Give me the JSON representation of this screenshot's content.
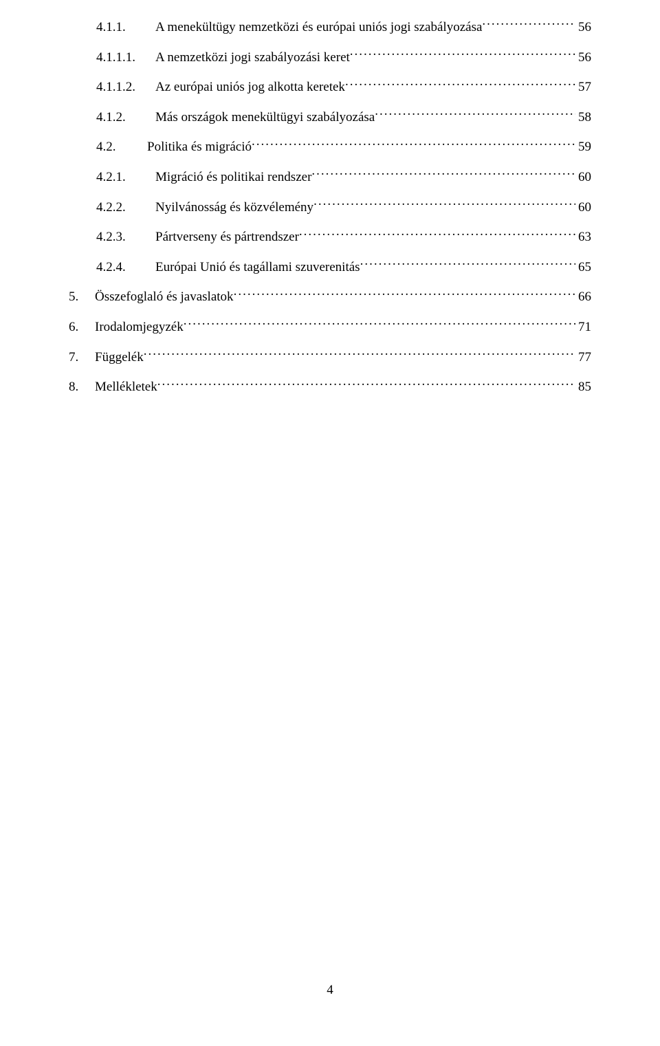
{
  "page_number": "4",
  "font": {
    "family": "Times New Roman",
    "size_pt": 14,
    "color": "#000000"
  },
  "background_color": "#ffffff",
  "toc": {
    "entries": [
      {
        "level": 2,
        "number": "4.1.1.",
        "label": "A menekültügy nemzetközi és európai uniós jogi szabályozása",
        "page": "56"
      },
      {
        "level": 2,
        "number": "4.1.1.1.",
        "label": "A nemzetközi jogi szabályozási keret",
        "page": "56"
      },
      {
        "level": 2,
        "number": "4.1.1.2.",
        "label": "Az európai uniós jog alkotta keretek",
        "page": "57"
      },
      {
        "level": 2,
        "number": "4.1.2.",
        "label": "Más országok menekültügyi szabályozása",
        "page": "58"
      },
      {
        "level": 1,
        "number": "4.2.",
        "label": "Politika és migráció",
        "page": "59"
      },
      {
        "level": 2,
        "number": "4.2.1.",
        "label": "Migráció és politikai rendszer",
        "page": "60"
      },
      {
        "level": 2,
        "number": "4.2.2.",
        "label": "Nyilvánosság és közvélemény",
        "page": "60"
      },
      {
        "level": 2,
        "number": "4.2.3.",
        "label": "Pártverseny és pártrendszer",
        "page": "63"
      },
      {
        "level": 2,
        "number": "4.2.4.",
        "label": "Európai Unió és tagállami szuverenitás",
        "page": "65"
      },
      {
        "level": 0,
        "number": "5.",
        "label": "Összefoglaló és javaslatok",
        "page": "66"
      },
      {
        "level": 0,
        "number": "6.",
        "label": "Irodalomjegyzék",
        "page": "71"
      },
      {
        "level": 0,
        "number": "7.",
        "label": "Függelék",
        "page": "77"
      },
      {
        "level": 0,
        "number": "8.",
        "label": "Mellékletek",
        "page": "85"
      }
    ]
  }
}
